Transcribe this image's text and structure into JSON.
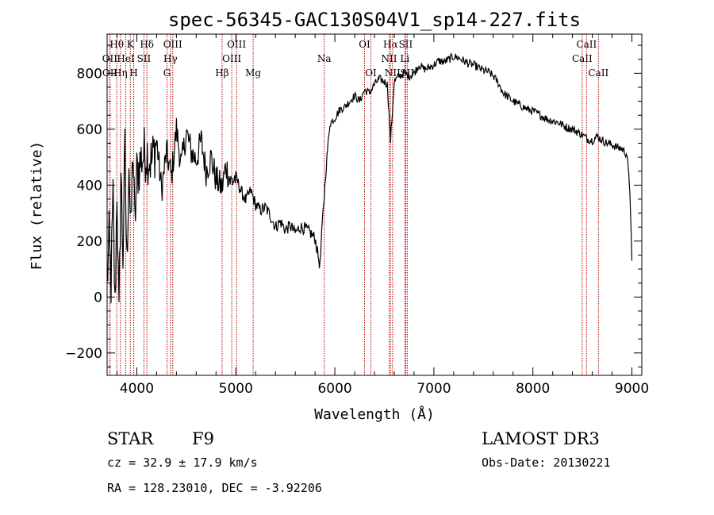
{
  "chart_data": {
    "type": "line",
    "title": "spec-56345-GAC130S04V1_sp14-227.fits",
    "xlabel": "Wavelength (Å)",
    "ylabel": "Flux (relative)",
    "xlim": [
      3700,
      9100
    ],
    "ylim": [
      -280,
      940
    ],
    "x_ticks": [
      4000,
      5000,
      6000,
      7000,
      8000,
      9000
    ],
    "y_ticks": [
      -200,
      0,
      200,
      400,
      600,
      800
    ],
    "series": [
      {
        "name": "flux",
        "x": [
          3700,
          3720,
          3740,
          3760,
          3780,
          3800,
          3820,
          3840,
          3860,
          3880,
          3900,
          3920,
          3940,
          3960,
          3980,
          4000,
          4050,
          4100,
          4150,
          4200,
          4250,
          4300,
          4350,
          4400,
          4450,
          4500,
          4550,
          4600,
          4650,
          4700,
          4750,
          4800,
          4861,
          4900,
          4950,
          5000,
          5050,
          5100,
          5150,
          5200,
          5250,
          5300,
          5350,
          5400,
          5450,
          5500,
          5550,
          5600,
          5650,
          5700,
          5750,
          5800,
          5850,
          5880,
          5900,
          5920,
          5950,
          6000,
          6050,
          6100,
          6150,
          6200,
          6250,
          6300,
          6350,
          6400,
          6450,
          6500,
          6530,
          6563,
          6600,
          6650,
          6700,
          6750,
          6800,
          6850,
          6900,
          6950,
          7000,
          7050,
          7100,
          7150,
          7200,
          7250,
          7300,
          7350,
          7400,
          7450,
          7500,
          7550,
          7600,
          7650,
          7700,
          7750,
          7800,
          7850,
          7900,
          7950,
          8000,
          8050,
          8100,
          8150,
          8200,
          8250,
          8300,
          8350,
          8400,
          8450,
          8500,
          8550,
          8600,
          8650,
          8700,
          8750,
          8800,
          8850,
          8900,
          8950,
          8980,
          9000
        ],
        "y": [
          50,
          200,
          50,
          350,
          -50,
          400,
          -100,
          450,
          150,
          520,
          100,
          500,
          200,
          540,
          250,
          440,
          500,
          520,
          480,
          560,
          380,
          520,
          430,
          600,
          470,
          590,
          520,
          490,
          560,
          450,
          500,
          420,
          390,
          470,
          410,
          430,
          380,
          345,
          380,
          330,
          310,
          320,
          290,
          250,
          270,
          240,
          255,
          230,
          250,
          245,
          230,
          210,
          110,
          300,
          400,
          500,
          620,
          640,
          670,
          680,
          700,
          720,
          700,
          740,
          730,
          760,
          780,
          770,
          760,
          560,
          770,
          790,
          800,
          790,
          800,
          830,
          815,
          820,
          830,
          845,
          840,
          850,
          860,
          855,
          845,
          835,
          830,
          820,
          810,
          805,
          790,
          765,
          730,
          715,
          700,
          690,
          680,
          670,
          665,
          655,
          645,
          635,
          630,
          625,
          615,
          605,
          600,
          590,
          580,
          565,
          560,
          575,
          560,
          550,
          545,
          535,
          530,
          510,
          380,
          130
        ]
      }
    ],
    "spectral_lines": [
      {
        "label": "Hθ",
        "x": 3798,
        "row": 1
      },
      {
        "label": "Hη",
        "x": 3835,
        "row": 3
      },
      {
        "label": "OII",
        "x": 3727,
        "row": 2
      },
      {
        "label": "OII",
        "x": 3729,
        "row": 3
      },
      {
        "label": "HeI",
        "x": 3889,
        "row": 2
      },
      {
        "label": "K",
        "x": 3934,
        "row": 1
      },
      {
        "label": "H",
        "x": 3969,
        "row": 3
      },
      {
        "label": "SII",
        "x": 4072,
        "row": 2
      },
      {
        "label": "Hδ",
        "x": 4102,
        "row": 1
      },
      {
        "label": "G",
        "x": 4305,
        "row": 3
      },
      {
        "label": "Hγ",
        "x": 4340,
        "row": 2
      },
      {
        "label": "OIII",
        "x": 4363,
        "row": 1
      },
      {
        "label": "Hβ",
        "x": 4861,
        "row": 3
      },
      {
        "label": "OIII",
        "x": 4959,
        "row": 2
      },
      {
        "label": "OIII",
        "x": 5007,
        "row": 1
      },
      {
        "label": "Mg",
        "x": 5175,
        "row": 3
      },
      {
        "label": "Na",
        "x": 5893,
        "row": 2
      },
      {
        "label": "OI",
        "x": 6300,
        "row": 1
      },
      {
        "label": "OI",
        "x": 6364,
        "row": 3
      },
      {
        "label": "NII",
        "x": 6548,
        "row": 2
      },
      {
        "label": "Hα",
        "x": 6563,
        "row": 1
      },
      {
        "label": "NII",
        "x": 6583,
        "row": 3
      },
      {
        "label": "SII",
        "x": 6716,
        "row": 1
      },
      {
        "label": "SII",
        "x": 6731,
        "row": 3
      },
      {
        "label": "Li",
        "x": 6707,
        "row": 2
      },
      {
        "label": "CaII",
        "x": 8498,
        "row": 2
      },
      {
        "label": "CaII",
        "x": 8542,
        "row": 1
      },
      {
        "label": "CaII",
        "x": 8662,
        "row": 3
      }
    ]
  },
  "info": {
    "object_class": "STAR",
    "subclass": "F9",
    "survey": "LAMOST DR3",
    "cz": "cz = 32.9 ± 17.9 km/s",
    "obs_date": "Obs-Date: 20130221",
    "coords": "RA = 128.23010, DEC =  -3.92206"
  },
  "colors": {
    "line_marker": "#b00000",
    "spectrum": "#000000"
  }
}
